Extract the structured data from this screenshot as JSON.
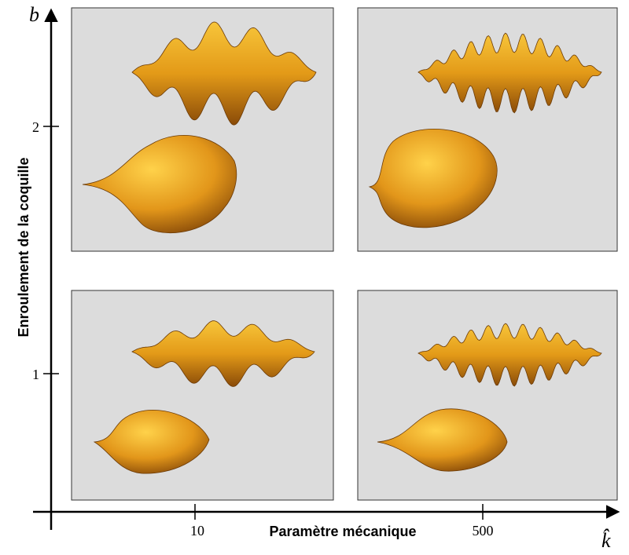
{
  "figure": {
    "x_axis": {
      "symbol": "k̂",
      "label": "Paramètre mécanique",
      "ticks": [
        "10",
        "500"
      ]
    },
    "y_axis": {
      "symbol": "b",
      "label": "Enroulement de la coquille",
      "ticks": [
        "1",
        "2"
      ]
    }
  }
}
